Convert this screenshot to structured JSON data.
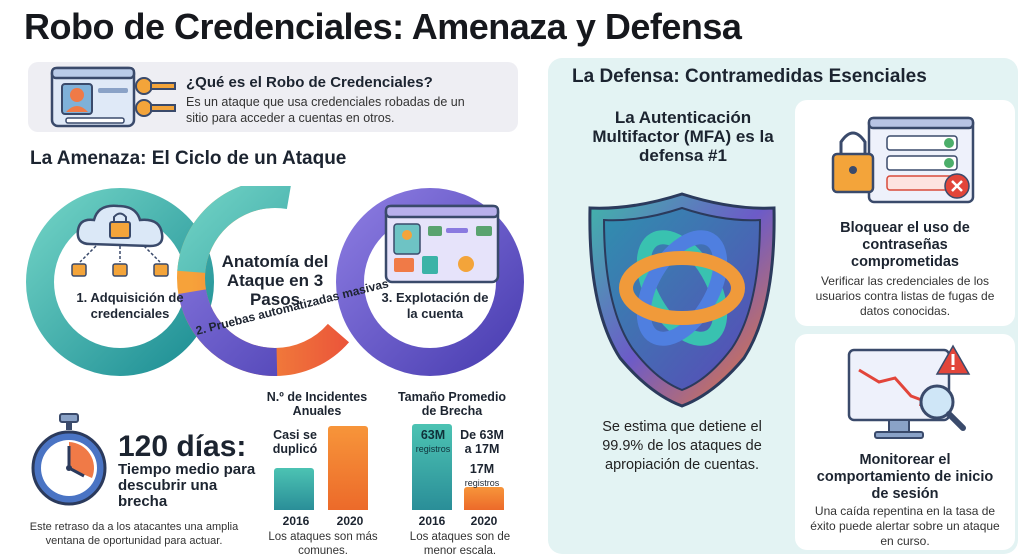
{
  "title": "Robo de Credenciales: Amenaza y Defensa",
  "intro": {
    "question": "¿Qué es el Robo de Credenciales?",
    "answer": "Es un ataque que usa credenciales robadas de un sitio para acceder a cuentas en otros."
  },
  "threat": {
    "heading": "La Amenaza: El Ciclo de un Ataque",
    "center_label": "Anatomía del Ataque en 3 Pasos",
    "step1": "1. Adquisición de credenciales",
    "step2": "2. Pruebas automatizadas masivas",
    "step3": "3. Explotación de la cuenta"
  },
  "time_stat": {
    "value": "120 días:",
    "label": "Tiempo medio para descubrir una brecha",
    "note": "Este retraso da a los atacantes una amplia ventana de oportunidad para actuar."
  },
  "incidents_chart": {
    "title": "N.º de Incidentes Anuales",
    "annotation": "Casi se duplicó",
    "years": [
      "2016",
      "2020"
    ],
    "note": "Los ataques son más comunes."
  },
  "breach_chart": {
    "title": "Tamaño Promedio de Brecha",
    "bar1_value": "63M",
    "bar1_unit": "registros",
    "change": "De 63M a 17M",
    "bar2_value": "17M",
    "bar2_unit": "registros",
    "years": [
      "2016",
      "2020"
    ],
    "note": "Los ataques son de menor escala."
  },
  "chart_data": [
    {
      "type": "bar",
      "title": "N.º de Incidentes Anuales",
      "categories": [
        "2016",
        "2020"
      ],
      "values": [
        1,
        2
      ],
      "annotation": "Casi se duplicó"
    },
    {
      "type": "bar",
      "title": "Tamaño Promedio de Brecha",
      "categories": [
        "2016",
        "2020"
      ],
      "values": [
        63,
        17
      ],
      "unit": "M registros"
    }
  ],
  "defense": {
    "heading": "La Defensa: Contramedidas Esenciales",
    "mfa_title": "La Autenticación Multifactor (MFA) es la defensa #1",
    "mfa_desc": "Se estima que detiene el 99.9% de los ataques de apropiación de cuentas.",
    "card1_title": "Bloquear el uso de contraseñas comprometidas",
    "card1_desc": "Verificar las credenciales de los usuarios contra listas de fugas de datos conocidas.",
    "card2_title": "Monitorear el comportamiento de inicio de sesión",
    "card2_desc": "Una caída repentina en la tasa de éxito puede alertar sobre un ataque en curso."
  },
  "icons": {
    "intro": "profile-card-keys-icon",
    "step1": "cloud-locks-icon",
    "step3": "browser-account-icon",
    "timer": "stopwatch-icon",
    "mfa": "shield-icon",
    "card1": "lock-password-icon",
    "card2": "monitor-chart-alert-icon"
  },
  "colors": {
    "teal": "#3bb3a7",
    "orange": "#f37a2e",
    "purple": "#6c5bc8",
    "defense_bg": "#e3f3f3"
  }
}
